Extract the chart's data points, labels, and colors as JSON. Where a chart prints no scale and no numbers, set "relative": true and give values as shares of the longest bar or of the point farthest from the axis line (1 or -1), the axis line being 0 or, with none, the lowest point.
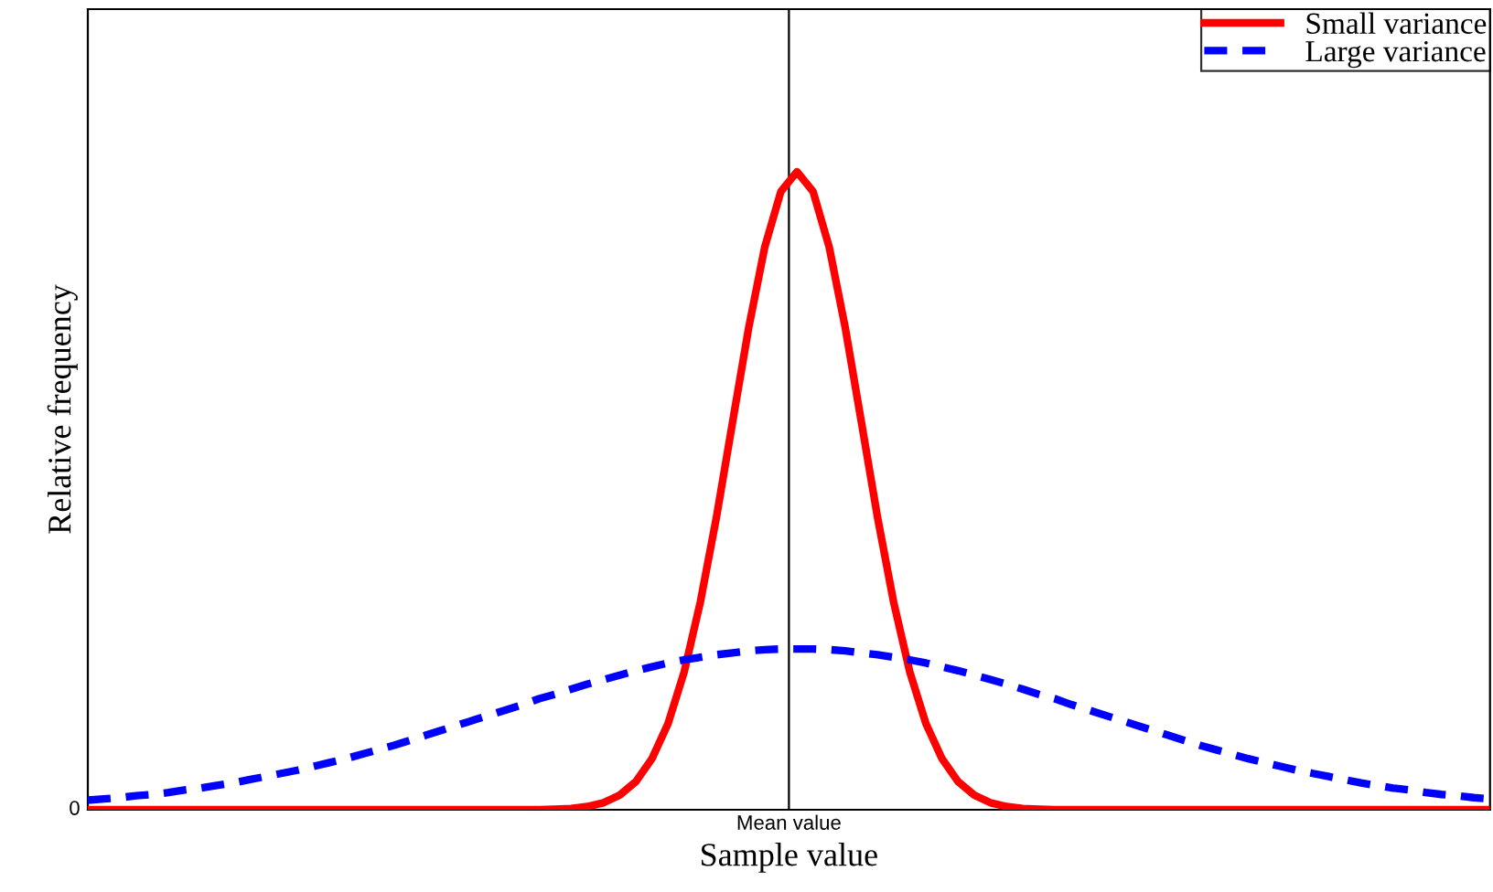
{
  "chart_data": {
    "type": "line",
    "relative": true,
    "xlabel": "Sample value",
    "ylabel": "Relative frequency",
    "categories": [
      null,
      null,
      null,
      null,
      null,
      null,
      null,
      null,
      null,
      null,
      null,
      null,
      null,
      null,
      null,
      null,
      null,
      null,
      null,
      null,
      null,
      null,
      null,
      null,
      null,
      null,
      null,
      null,
      null,
      null,
      null,
      null,
      null,
      null,
      null,
      null,
      null,
      null,
      null,
      null,
      null,
      null,
      null,
      null,
      null,
      null,
      null,
      null,
      null,
      null,
      null,
      null,
      null,
      null,
      null,
      null,
      null,
      null,
      null,
      null,
      null,
      null,
      null,
      null,
      null,
      null,
      null,
      null,
      null,
      null,
      null,
      null,
      null,
      null,
      null,
      null,
      null,
      null,
      null,
      null,
      null,
      null,
      null,
      null,
      null,
      null,
      null,
      null
    ],
    "annotations": [
      "Mean value",
      "0"
    ],
    "legend": "top right",
    "series": [
      {
        "name": "Small variance",
        "color": "#ff0000",
        "line_style": "solid",
        "values": [
          0,
          0,
          0,
          0,
          0,
          0,
          0,
          0,
          0,
          0,
          0,
          0,
          0,
          0,
          0,
          0,
          0,
          0,
          0,
          0,
          0,
          0,
          0,
          0,
          0,
          0,
          0,
          0,
          0,
          0.001,
          0.002,
          0.005,
          0.011,
          0.023,
          0.044,
          0.08,
          0.135,
          0.216,
          0.325,
          0.458,
          0.607,
          0.755,
          0.882,
          0.969,
          1,
          0.969,
          0.882,
          0.755,
          0.607,
          0.458,
          0.325,
          0.216,
          0.135,
          0.08,
          0.044,
          0.023,
          0.011,
          0.005,
          0.002,
          0.001,
          0,
          0,
          0,
          0,
          0,
          0,
          0,
          0,
          0,
          0,
          0,
          0,
          0,
          0,
          0,
          0,
          0,
          0,
          0,
          0,
          0,
          0,
          0,
          0,
          0,
          0,
          0,
          0
        ]
      },
      {
        "name": "Large variance",
        "color": "#0000ff",
        "line_style": "dashed",
        "values": [
          0.015,
          0.017,
          0.019,
          0.022,
          0.024,
          0.027,
          0.031,
          0.034,
          0.038,
          0.042,
          0.047,
          0.052,
          0.057,
          0.062,
          0.068,
          0.074,
          0.08,
          0.087,
          0.094,
          0.101,
          0.109,
          0.117,
          0.125,
          0.133,
          0.141,
          0.149,
          0.157,
          0.165,
          0.174,
          0.181,
          0.189,
          0.197,
          0.204,
          0.211,
          0.218,
          0.224,
          0.23,
          0.235,
          0.239,
          0.243,
          0.246,
          0.249,
          0.251,
          0.252,
          0.252,
          0.252,
          0.251,
          0.249,
          0.246,
          0.243,
          0.239,
          0.235,
          0.23,
          0.224,
          0.218,
          0.211,
          0.204,
          0.197,
          0.189,
          0.181,
          0.174,
          0.165,
          0.157,
          0.149,
          0.141,
          0.133,
          0.125,
          0.117,
          0.109,
          0.101,
          0.094,
          0.087,
          0.08,
          0.074,
          0.068,
          0.062,
          0.057,
          0.052,
          0.047,
          0.042,
          0.038,
          0.034,
          0.031,
          0.027,
          0.024,
          0.022,
          0.019,
          0.017
        ]
      }
    ]
  }
}
